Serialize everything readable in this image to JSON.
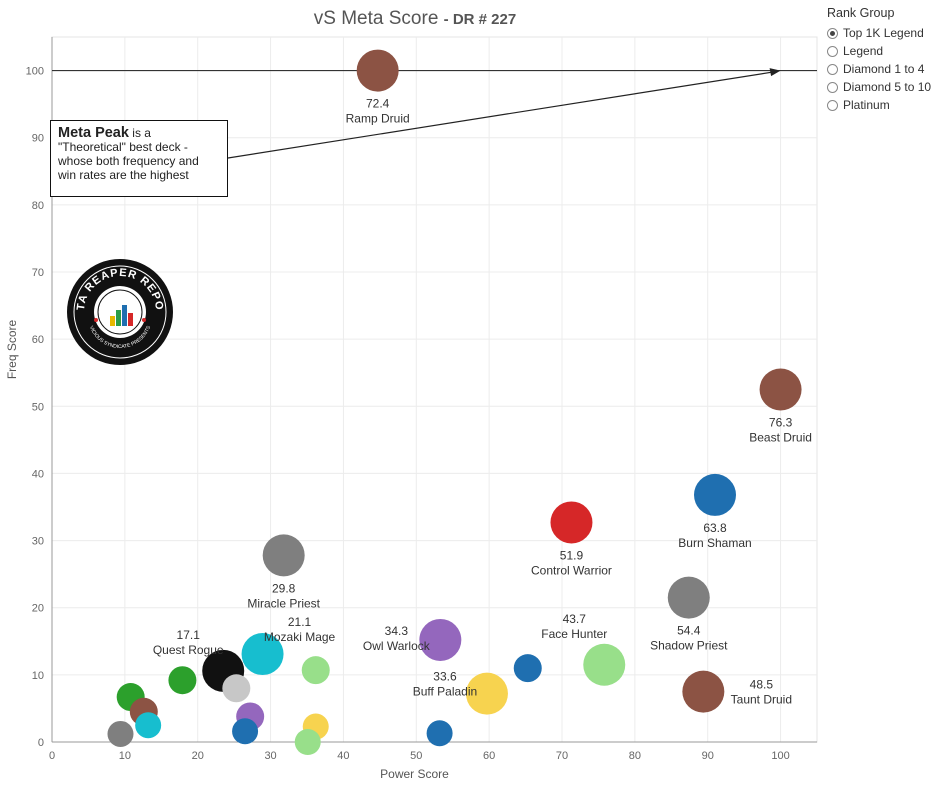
{
  "chart_title": "vS Meta Score",
  "chart_subtitle": "DR # 227",
  "legend": {
    "title": "Rank Group",
    "options": [
      "Top 1K Legend",
      "Legend",
      "Diamond 1 to 4",
      "Diamond 5 to 10",
      "Platinum"
    ],
    "selected": "Top 1K Legend"
  },
  "annotation": {
    "bold": "Meta Peak",
    "text": " is a \"Theoretical\" best deck - whose both frequency and win rates are the highest"
  },
  "logo": {
    "top_text": "DATA REAPER REPORT",
    "bottom_text": "VICIOUS SYNDICATE PRESENTS"
  },
  "chart_data": {
    "type": "scatter",
    "xlabel": "Power Score",
    "ylabel": "Freq Score",
    "xlim": [
      0,
      105
    ],
    "ylim": [
      0,
      105
    ],
    "x_ticks": [
      "0",
      "10",
      "20",
      "30",
      "40",
      "50",
      "60",
      "70",
      "80",
      "90",
      "100"
    ],
    "y_ticks": [
      "0",
      "10",
      "20",
      "30",
      "40",
      "50",
      "60",
      "70",
      "80",
      "90",
      "100"
    ],
    "reference_line_y": 100,
    "grid": true,
    "points": [
      {
        "name": "Ramp Druid",
        "score": "72.4",
        "x": 44.7,
        "y": 100,
        "color": "#8c5344"
      },
      {
        "name": "Beast Druid",
        "score": "76.3",
        "x": 100,
        "y": 52.5,
        "color": "#8c5344"
      },
      {
        "name": "Burn Shaman",
        "score": "63.8",
        "x": 91,
        "y": 36.8,
        "color": "#1f6fb0"
      },
      {
        "name": "Control Warrior",
        "score": "51.9",
        "x": 71.3,
        "y": 32.7,
        "color": "#d62728"
      },
      {
        "name": "Shadow Priest",
        "score": "54.4",
        "x": 87.4,
        "y": 21.5,
        "color": "#7f7f7f"
      },
      {
        "name": "Taunt Druid",
        "score": "48.5",
        "x": 89.4,
        "y": 7.5,
        "color": "#8c5344"
      },
      {
        "name": "Face Hunter",
        "score": "43.7",
        "x": 75.8,
        "y": 11.5,
        "color": "#98df8a"
      },
      {
        "name": "Miracle Priest",
        "score": "29.8",
        "x": 31.8,
        "y": 27.8,
        "color": "#7f7f7f"
      },
      {
        "name": "Owl Warlock",
        "score": "34.3",
        "x": 53.3,
        "y": 15.2,
        "color": "#9467bd"
      },
      {
        "name": "Buff Paladin",
        "score": "33.6",
        "x": 59.7,
        "y": 7.2,
        "color": "#f7d34f"
      },
      {
        "name": "Mozaki Mage",
        "score": "21.1",
        "x": 28.9,
        "y": 13.1,
        "color": "#17becf"
      },
      {
        "name": "Quest Rogue",
        "score": "17.1",
        "x": 23.5,
        "y": 10.6,
        "color": "#111111"
      },
      {
        "name": "",
        "score": "",
        "x": 65.3,
        "y": 11,
        "color": "#1f6fb0"
      },
      {
        "name": "",
        "score": "",
        "x": 53.2,
        "y": 1.3,
        "color": "#1f6fb0"
      },
      {
        "name": "",
        "score": "",
        "x": 36.2,
        "y": 10.7,
        "color": "#98df8a"
      },
      {
        "name": "",
        "score": "",
        "x": 36.2,
        "y": 2.3,
        "color": "#f7d34f"
      },
      {
        "name": "",
        "score": "",
        "x": 35.1,
        "y": 0,
        "color": "#98df8a"
      },
      {
        "name": "",
        "score": "",
        "x": 27.2,
        "y": 3.8,
        "color": "#9467bd"
      },
      {
        "name": "",
        "score": "",
        "x": 25.3,
        "y": 8,
        "color": "#c7c7c7"
      },
      {
        "name": "",
        "score": "",
        "x": 26.5,
        "y": 1.6,
        "color": "#1f6fb0"
      },
      {
        "name": "",
        "score": "",
        "x": 17.9,
        "y": 9.2,
        "color": "#2ca02c"
      },
      {
        "name": "",
        "score": "",
        "x": 10.8,
        "y": 6.7,
        "color": "#2ca02c"
      },
      {
        "name": "",
        "score": "",
        "x": 12.6,
        "y": 4.5,
        "color": "#8c5344"
      },
      {
        "name": "",
        "score": "",
        "x": 13.2,
        "y": 2.5,
        "color": "#17becf"
      },
      {
        "name": "",
        "score": "",
        "x": 9.4,
        "y": 1.2,
        "color": "#7f7f7f"
      }
    ]
  }
}
